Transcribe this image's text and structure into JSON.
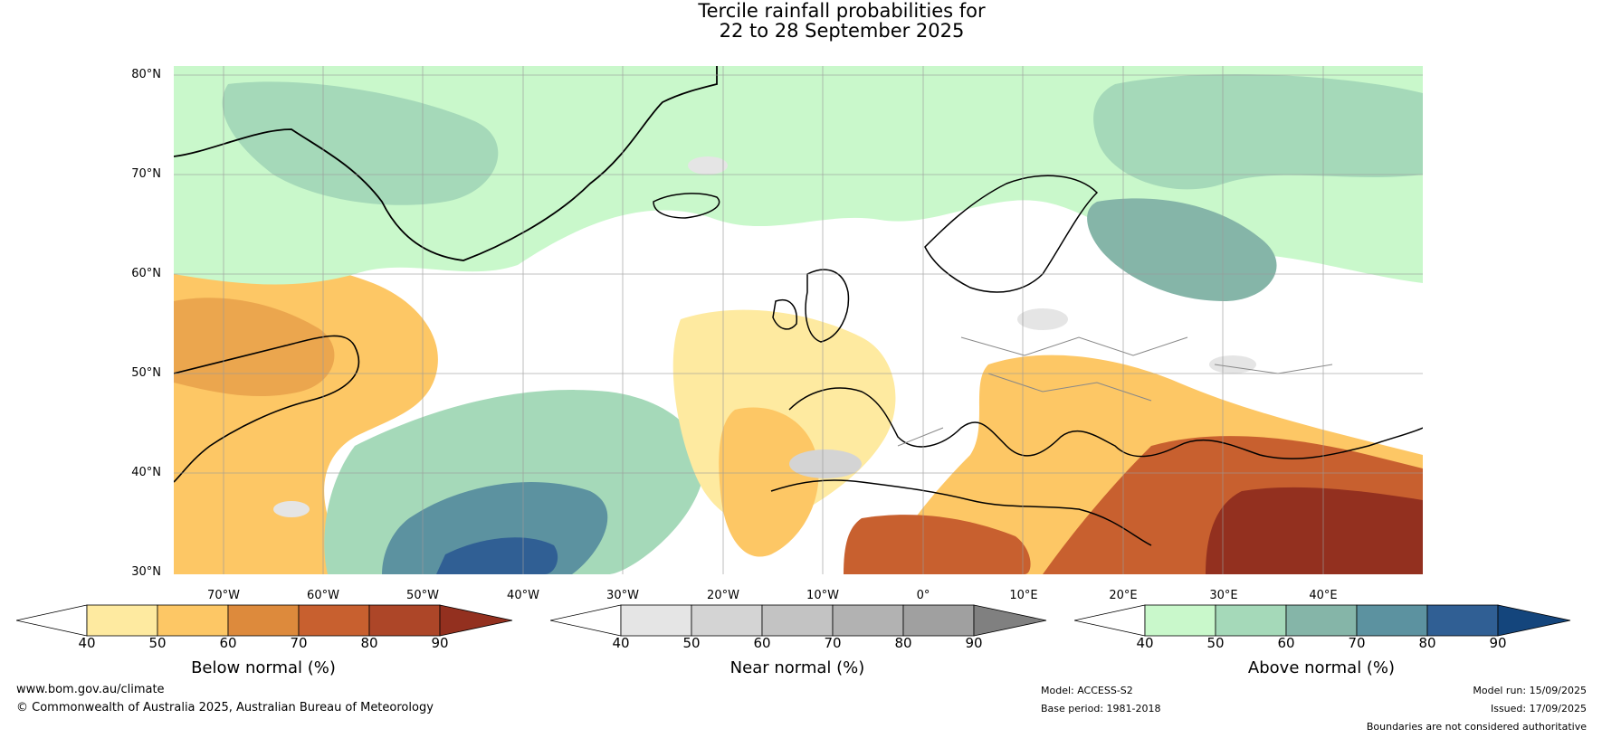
{
  "title": {
    "line1": "Tercile rainfall probabilities for",
    "line2": "22 to 28 September 2025"
  },
  "map": {
    "lat_labels": [
      "80°N",
      "70°N",
      "60°N",
      "50°N",
      "40°N",
      "30°N"
    ],
    "lon_labels": [
      "70°W",
      "60°W",
      "50°W",
      "40°W",
      "30°W",
      "20°W",
      "10°W",
      "0°",
      "10°E",
      "20°E",
      "30°E",
      "40°E"
    ],
    "extent": {
      "lon": [
        -75,
        50
      ],
      "lat": [
        30,
        81
      ]
    }
  },
  "colorbars": [
    {
      "title": "Below normal (%)",
      "ticks": [
        "40",
        "50",
        "60",
        "70",
        "80",
        "90"
      ],
      "colors": [
        "#ffffff",
        "#feeaa0",
        "#fdc765",
        "#dd8a3c",
        "#c8602f",
        "#ad4628",
        "#93301f"
      ]
    },
    {
      "title": "Near normal (%)",
      "ticks": [
        "40",
        "50",
        "60",
        "70",
        "80",
        "90"
      ],
      "colors": [
        "#ffffff",
        "#e5e5e5",
        "#d4d4d4",
        "#c3c3c3",
        "#b2b2b2",
        "#a0a0a0",
        "#808080"
      ]
    },
    {
      "title": "Above normal (%)",
      "ticks": [
        "40",
        "50",
        "60",
        "70",
        "80",
        "90"
      ],
      "colors": [
        "#ffffff",
        "#c9f8cb",
        "#a5d9b9",
        "#85b5a8",
        "#5c92a0",
        "#305f94",
        "#14457c"
      ]
    }
  ],
  "footer": {
    "website": "www.bom.gov.au/climate",
    "copyright": "© Commonwealth of Australia 2025, Australian Bureau of Meteorology",
    "model": "Model: ACCESS-S2",
    "base_period": "Base period: 1981-2018",
    "model_run": "Model run: 15/09/2025",
    "issued": "Issued: 17/09/2025",
    "disclaimer": "Boundaries are not considered authoritative"
  }
}
